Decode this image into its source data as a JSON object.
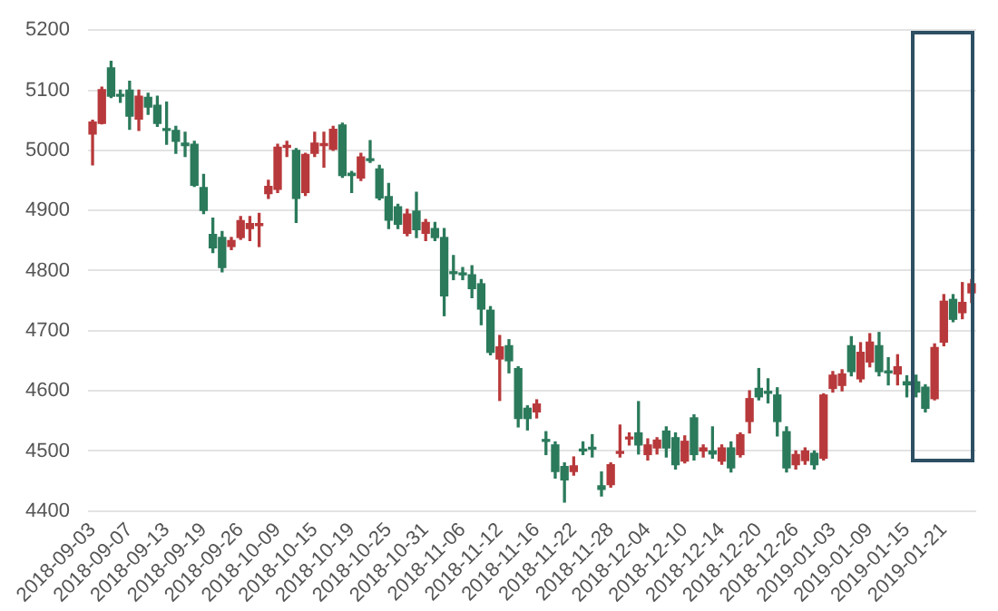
{
  "chart_data": {
    "type": "candlestick",
    "categories": [
      "2018-09-03",
      null,
      null,
      null,
      "2018-09-07",
      null,
      null,
      null,
      "2018-09-13",
      null,
      null,
      null,
      "2018-09-19",
      null,
      null,
      null,
      "2018-09-26",
      null,
      null,
      null,
      "2018-10-09",
      null,
      null,
      null,
      "2018-10-15",
      null,
      null,
      null,
      "2018-10-19",
      null,
      null,
      null,
      "2018-10-25",
      null,
      null,
      null,
      "2018-10-31",
      null,
      null,
      null,
      "2018-11-06",
      null,
      null,
      null,
      "2018-11-12",
      null,
      null,
      null,
      "2018-11-16",
      null,
      null,
      null,
      "2018-11-22",
      null,
      null,
      null,
      "2018-11-28",
      null,
      null,
      null,
      "2018-12-04",
      null,
      null,
      null,
      "2018-12-10",
      null,
      null,
      null,
      "2018-12-14",
      null,
      null,
      null,
      "2018-12-20",
      null,
      null,
      null,
      "2018-12-26",
      null,
      null,
      null,
      "2019-01-03",
      null,
      null,
      null,
      "2019-01-09",
      null,
      null,
      null,
      "2019-01-15",
      null,
      null,
      null,
      "2019-01-21",
      null,
      null,
      null
    ],
    "ohlc": [
      [
        5027,
        5050,
        4976,
        5047
      ],
      [
        5045,
        5105,
        5044,
        5101
      ],
      [
        5137,
        5148,
        5088,
        5090
      ],
      [
        5093,
        5100,
        5080,
        5090
      ],
      [
        5100,
        5115,
        5035,
        5057
      ],
      [
        5052,
        5100,
        5033,
        5090
      ],
      [
        5088,
        5095,
        5060,
        5072
      ],
      [
        5075,
        5090,
        5040,
        5045
      ],
      [
        5035,
        5080,
        5010,
        5033
      ],
      [
        5033,
        5040,
        4995,
        5015
      ],
      [
        5012,
        5030,
        4990,
        5008
      ],
      [
        5010,
        5015,
        4940,
        4942
      ],
      [
        4938,
        4960,
        4895,
        4900
      ],
      [
        4860,
        4887,
        4830,
        4838
      ],
      [
        4855,
        4865,
        4798,
        4805
      ],
      [
        4840,
        4855,
        4835,
        4850
      ],
      [
        4855,
        4890,
        4852,
        4883
      ],
      [
        4870,
        4890,
        4850,
        4878
      ],
      [
        4875,
        4895,
        4840,
        4875
      ],
      [
        4928,
        4950,
        4920,
        4940
      ],
      [
        4935,
        5010,
        4930,
        5005
      ],
      [
        5005,
        5015,
        4990,
        5007
      ],
      [
        5000,
        5003,
        4880,
        4920
      ],
      [
        4930,
        4995,
        4925,
        4993
      ],
      [
        4995,
        5030,
        4990,
        5012
      ],
      [
        5008,
        5030,
        4972,
        5010
      ],
      [
        5002,
        5040,
        5000,
        5035
      ],
      [
        5042,
        5045,
        4955,
        4958
      ],
      [
        4962,
        4965,
        4930,
        4958
      ],
      [
        4954,
        4995,
        4950,
        4989
      ],
      [
        4985,
        5016,
        4980,
        4983
      ],
      [
        4969,
        4975,
        4918,
        4921
      ],
      [
        4923,
        4945,
        4870,
        4884
      ],
      [
        4906,
        4910,
        4870,
        4877
      ],
      [
        4862,
        4902,
        4858,
        4894
      ],
      [
        4899,
        4930,
        4855,
        4868
      ],
      [
        4862,
        4885,
        4850,
        4880
      ],
      [
        4870,
        4880,
        4850,
        4855
      ],
      [
        4855,
        4870,
        4725,
        4758
      ],
      [
        4797,
        4825,
        4785,
        4795
      ],
      [
        4795,
        4805,
        4785,
        4793
      ],
      [
        4793,
        4808,
        4755,
        4770
      ],
      [
        4778,
        4785,
        4710,
        4736
      ],
      [
        4734,
        4740,
        4660,
        4664
      ],
      [
        4653,
        4692,
        4584,
        4673
      ],
      [
        4675,
        4685,
        4630,
        4650
      ],
      [
        4637,
        4640,
        4540,
        4554
      ],
      [
        4571,
        4575,
        4535,
        4554
      ],
      [
        4565,
        4585,
        4555,
        4578
      ],
      [
        4517,
        4532,
        4494,
        4516
      ],
      [
        4510,
        4515,
        4455,
        4466
      ],
      [
        4474,
        4480,
        4415,
        4452
      ],
      [
        4466,
        4490,
        4460,
        4475
      ],
      [
        4502,
        4515,
        4494,
        4500
      ],
      [
        4505,
        4527,
        4490,
        4503
      ],
      [
        4442,
        4465,
        4425,
        4436
      ],
      [
        4444,
        4480,
        4440,
        4477
      ],
      [
        4496,
        4543,
        4490,
        4497
      ],
      [
        4520,
        4530,
        4510,
        4522
      ],
      [
        4530,
        4582,
        4495,
        4510
      ],
      [
        4494,
        4520,
        4485,
        4510
      ],
      [
        4505,
        4522,
        4495,
        4518
      ],
      [
        4533,
        4540,
        4490,
        4505
      ],
      [
        4522,
        4530,
        4470,
        4477
      ],
      [
        4483,
        4525,
        4480,
        4516
      ],
      [
        4555,
        4560,
        4485,
        4494
      ],
      [
        4500,
        4510,
        4490,
        4505
      ],
      [
        4500,
        4540,
        4488,
        4495
      ],
      [
        4483,
        4510,
        4478,
        4505
      ],
      [
        4505,
        4515,
        4465,
        4472
      ],
      [
        4494,
        4530,
        4490,
        4527
      ],
      [
        4549,
        4600,
        4530,
        4587
      ],
      [
        4604,
        4637,
        4585,
        4590
      ],
      [
        4598,
        4620,
        4580,
        4596
      ],
      [
        4593,
        4605,
        4525,
        4549
      ],
      [
        4532,
        4540,
        4465,
        4472
      ],
      [
        4477,
        4500,
        4470,
        4494
      ],
      [
        4484,
        4505,
        4478,
        4500
      ],
      [
        4496,
        4500,
        4470,
        4477
      ],
      [
        4488,
        4595,
        4485,
        4593
      ],
      [
        4604,
        4632,
        4598,
        4626
      ],
      [
        4609,
        4635,
        4600,
        4628
      ],
      [
        4675,
        4690,
        4625,
        4632
      ],
      [
        4620,
        4680,
        4615,
        4664
      ],
      [
        4648,
        4695,
        4640,
        4681
      ],
      [
        4675,
        4697,
        4625,
        4632
      ],
      [
        4633,
        4655,
        4610,
        4630
      ],
      [
        4628,
        4660,
        4610,
        4640
      ],
      [
        4615,
        4625,
        4590,
        4610
      ],
      [
        4615,
        4626,
        4590,
        4598
      ],
      [
        4606,
        4610,
        4565,
        4571
      ],
      [
        4587,
        4678,
        4585,
        4672
      ],
      [
        4681,
        4760,
        4675,
        4749
      ],
      [
        4752,
        4760,
        4715,
        4719
      ],
      [
        4730,
        4780,
        4720,
        4747
      ],
      [
        4763,
        4785,
        4747,
        4778
      ]
    ],
    "colors": [
      "#b8393b",
      "#b8393b",
      "#2b7a5b",
      "#2b7a5b",
      "#2b7a5b",
      "#b8393b",
      "#2b7a5b",
      "#2b7a5b",
      "#2b7a5b",
      "#2b7a5b",
      "#2b7a5b",
      "#2b7a5b",
      "#2b7a5b",
      "#2b7a5b",
      "#2b7a5b",
      "#b8393b",
      "#b8393b",
      "#b8393b",
      "#b8393b",
      "#b8393b",
      "#b8393b",
      "#b8393b",
      "#2b7a5b",
      "#b8393b",
      "#b8393b",
      "#b8393b",
      "#b8393b",
      "#2b7a5b",
      "#2b7a5b",
      "#b8393b",
      "#2b7a5b",
      "#2b7a5b",
      "#2b7a5b",
      "#2b7a5b",
      "#b8393b",
      "#2b7a5b",
      "#b8393b",
      "#2b7a5b",
      "#2b7a5b",
      "#2b7a5b",
      "#2b7a5b",
      "#2b7a5b",
      "#2b7a5b",
      "#2b7a5b",
      "#b8393b",
      "#2b7a5b",
      "#2b7a5b",
      "#2b7a5b",
      "#b8393b",
      "#2b7a5b",
      "#2b7a5b",
      "#2b7a5b",
      "#b8393b",
      "#2b7a5b",
      "#2b7a5b",
      "#2b7a5b",
      "#b8393b",
      "#b8393b",
      "#b8393b",
      "#2b7a5b",
      "#b8393b",
      "#b8393b",
      "#2b7a5b",
      "#2b7a5b",
      "#b8393b",
      "#2b7a5b",
      "#b8393b",
      "#2b7a5b",
      "#b8393b",
      "#2b7a5b",
      "#b8393b",
      "#b8393b",
      "#2b7a5b",
      "#2b7a5b",
      "#2b7a5b",
      "#2b7a5b",
      "#b8393b",
      "#b8393b",
      "#2b7a5b",
      "#b8393b",
      "#b8393b",
      "#b8393b",
      "#2b7a5b",
      "#b8393b",
      "#b8393b",
      "#2b7a5b",
      "#2b7a5b",
      "#b8393b",
      "#2b7a5b",
      "#2b7a5b",
      "#2b7a5b",
      "#b8393b",
      "#b8393b",
      "#2b7a5b",
      "#b8393b",
      "#b8393b"
    ],
    "ylim": [
      4400,
      5200
    ],
    "yticks": [
      4400,
      4500,
      4600,
      4700,
      4800,
      4900,
      5000,
      5100,
      5200
    ],
    "grid": "y"
  }
}
